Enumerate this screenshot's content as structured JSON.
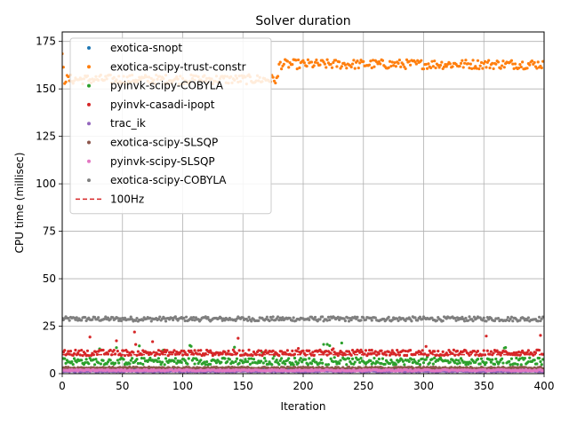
{
  "chart_data": {
    "type": "scatter",
    "title": "Solver duration",
    "xlabel": "Iteration",
    "ylabel": "CPU time (millisec)",
    "xlim": [
      0,
      400
    ],
    "ylim": [
      0,
      180
    ],
    "xticks": [
      0,
      50,
      100,
      150,
      200,
      250,
      300,
      350,
      400
    ],
    "yticks": [
      0,
      25,
      50,
      75,
      100,
      125,
      150,
      175
    ],
    "grid": true,
    "legend_position": "upper-left",
    "series": [
      {
        "name": "exotica-snopt",
        "color": "#1f77b4",
        "marker": "dot",
        "base": 2.0,
        "jitter": 0.4,
        "spike": 0
      },
      {
        "name": "exotica-scipy-trust-constr",
        "color": "#ff7f0e",
        "marker": "dot",
        "segments": [
          [
            0,
            1,
            167
          ],
          [
            2,
            180,
            155
          ],
          [
            200,
            400,
            163
          ]
        ],
        "jitter": 2.5
      },
      {
        "name": "pyinvk-scipy-COBYLA",
        "color": "#2ca02c",
        "marker": "dot",
        "base": 6.5,
        "jitter": 1.8,
        "spike": 0.06
      },
      {
        "name": "pyinvk-casadi-ipopt",
        "color": "#d62728",
        "marker": "dot",
        "base": 11.0,
        "jitter": 1.5,
        "spike": 0.05
      },
      {
        "name": "trac_ik",
        "color": "#9467bd",
        "marker": "dot",
        "base": 1.2,
        "jitter": 0.3,
        "spike": 0
      },
      {
        "name": "exotica-scipy-SLSQP",
        "color": "#8c564b",
        "marker": "dot",
        "base": 3.0,
        "jitter": 0.5,
        "spike": 0
      },
      {
        "name": "pyinvk-scipy-SLSQP",
        "color": "#e377c2",
        "marker": "dot",
        "base": 1.8,
        "jitter": 0.4,
        "spike": 0
      },
      {
        "name": "exotica-scipy-COBYLA",
        "color": "#7f7f7f",
        "marker": "dot",
        "base": 28.8,
        "jitter": 1.2,
        "spike": 0
      }
    ],
    "reference_lines": [
      {
        "name": "100Hz",
        "y": 10,
        "color": "#d62728",
        "style": "dashed"
      }
    ],
    "n_points": 400
  }
}
